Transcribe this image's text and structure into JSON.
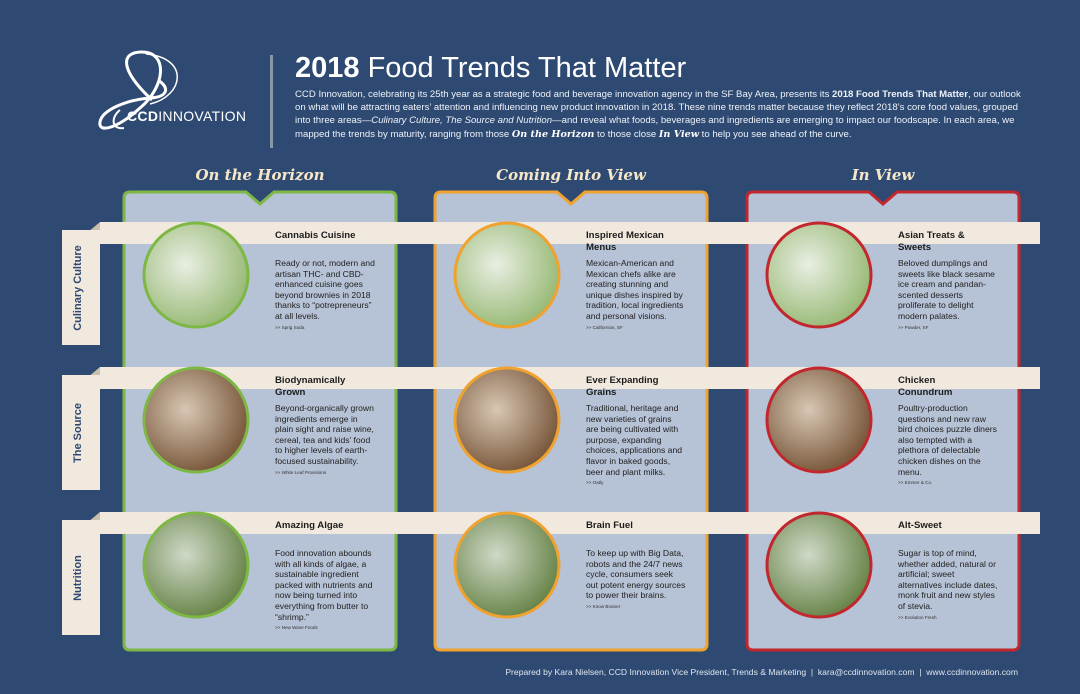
{
  "logo": {
    "bold": "CCD",
    "rest": "INNOVATION"
  },
  "header": {
    "title_year": "2018",
    "title_rest": "Food Trends That Matter",
    "intro": [
      {
        "text": "CCD Innovation, celebrating its 25th year as a strategic food and beverage innovation agency in the SF Bay Area, presents its ",
        "style": "normal"
      },
      {
        "text": "2018 Food Trends That Matter",
        "style": "bold"
      },
      {
        "text": ", our outlook on what will be attracting eaters’ attention and influencing new product innovation in 2018. These nine trends matter because they reflect 2018’s core food values, grouped into three areas—",
        "style": "normal"
      },
      {
        "text": "Culinary Culture, The Source and Nutrition",
        "style": "italic"
      },
      {
        "text": "—and reveal what foods, beverages and ingredients are emerging to impact our foodscape. In each area, we mapped the trends by maturity, ranging from those ",
        "style": "normal"
      },
      {
        "text": "On the Horizon",
        "style": "script"
      },
      {
        "text": " to those close ",
        "style": "normal"
      },
      {
        "text": "In View",
        "style": "script"
      },
      {
        "text": " to help you see ahead of the curve.",
        "style": "normal"
      }
    ]
  },
  "columns": [
    {
      "name": "On the Horizon",
      "color": "#7db845"
    },
    {
      "name": "Coming Into View",
      "color": "#f0a22e"
    },
    {
      "name": "In View",
      "color": "#c1272d"
    }
  ],
  "rows": [
    {
      "label": "Culinary Culture",
      "cells": [
        {
          "title": "Cannabis Cuisine",
          "text": "Ready or not, modern and artisan THC- and CBD-enhanced cuisine goes beyond brownies in 2018 thanks to “potrepreneurs” at all levels.",
          "credit": ">> Sprig Soda"
        },
        {
          "title": "Inspired Mexican Menus",
          "text": "Mexican-American and Mexican chefs alike are creating stunning and unique dishes inspired by tradition, local ingredients and personal visions.",
          "credit": ">> Californios, SF"
        },
        {
          "title": "Asian Treats & Sweets",
          "text": "Beloved dumplings and sweets like black sesame ice cream and pandan-scented desserts proliferate to delight modern palates.",
          "credit": ">> Powder, SF"
        }
      ]
    },
    {
      "label": "The Source",
      "cells": [
        {
          "title": "Biodynamically Grown",
          "text": "Beyond-organically grown ingredients emerge in plain sight and raise wine, cereal, tea and kids’ food to higher levels of earth-focused sustainability.",
          "credit": ">> White Leaf Provisions"
        },
        {
          "title": "Ever Expanding Grains",
          "text": "Traditional, heritage and new varieties of grains are being cultivated with purpose, expanding choices, applications and flavor in baked goods, beer and plant milks.",
          "credit": ">> Oatly"
        },
        {
          "title": "Chicken Conundrum",
          "text": "Poultry-production questions and new raw bird choices puzzle diners also tempted with a plethora of delectable chicken dishes on the menu.",
          "credit": ">> Emmer & Co."
        }
      ]
    },
    {
      "label": "Nutrition",
      "cells": [
        {
          "title": "Amazing Algae",
          "text": "Food innovation abounds with all kinds of algae, a sustainable ingredient packed with nutrients and now being turned into everything from butter to “shrimp.”",
          "credit": ">> New Wave Foods"
        },
        {
          "title": "Brain Fuel",
          "text": "To keep up with Big Data, robots and the 24/7 news cycle, consumers seek out potent energy sources to power their brains.",
          "credit": ">> Know Brainer"
        },
        {
          "title": "Alt-Sweet",
          "text": "Sugar is top of mind, whether added, natural or artificial; sweet alternatives include dates, monk fruit and new styles of stevia.",
          "credit": ">> Evolution Fresh"
        }
      ]
    }
  ],
  "footer": "Prepared by Kara Nielsen, CCD Innovation Vice President, Trends & Marketing  |  kara@ccdinnovation.com  |  www.ccdinnovation.com"
}
